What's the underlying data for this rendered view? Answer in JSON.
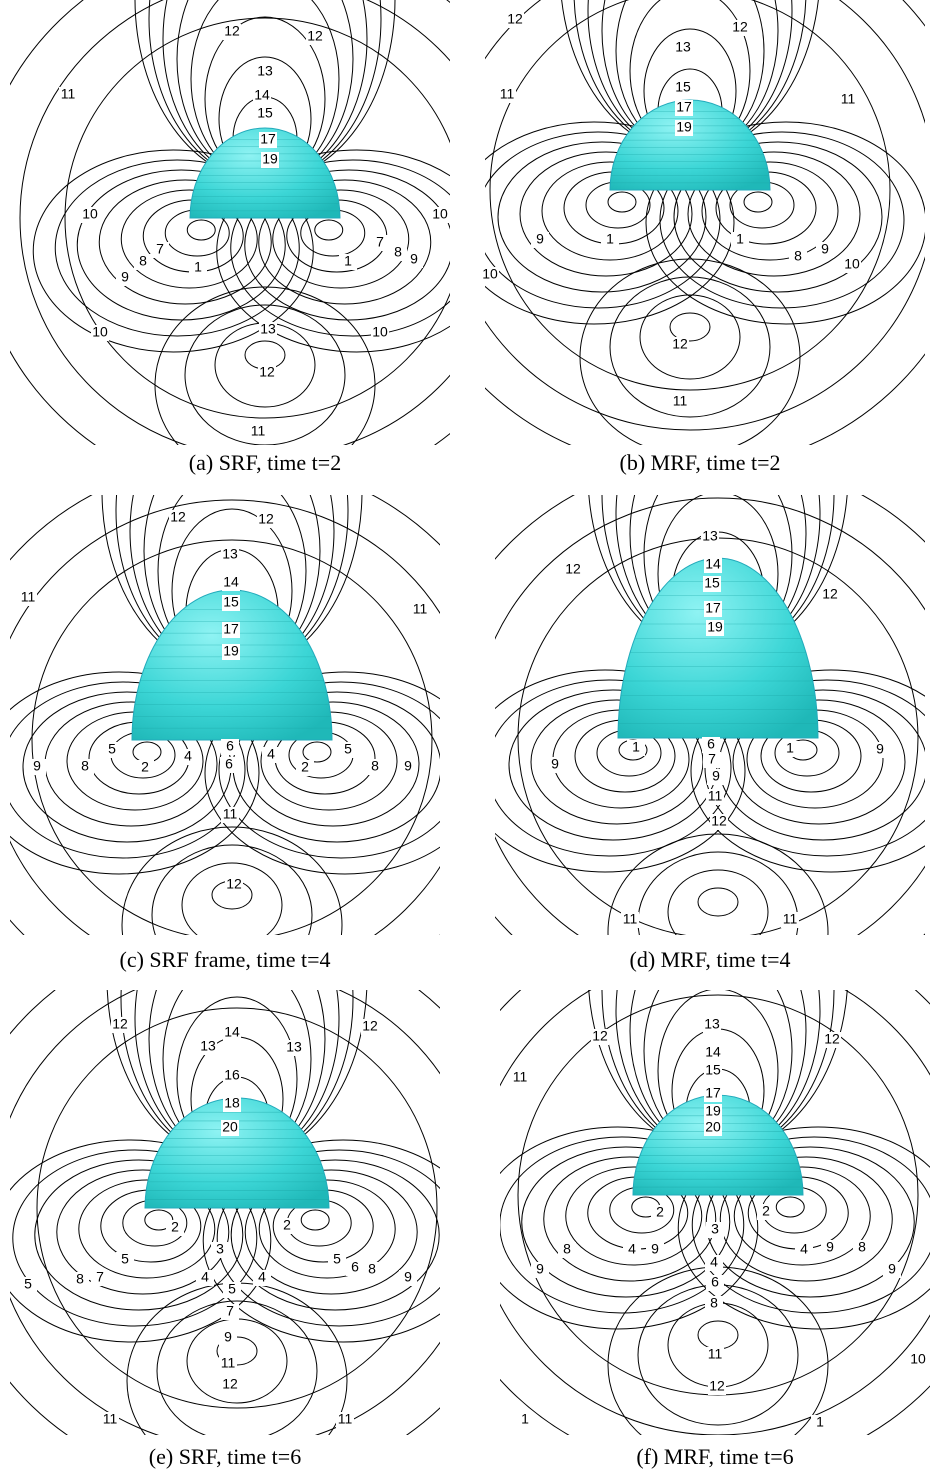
{
  "panels": [
    {
      "caption": "(a) SRF, time t=2",
      "contour_labels": [
        "12",
        "12",
        "11",
        "13",
        "14",
        "15",
        "17",
        "19",
        "10",
        "10",
        "9",
        "8",
        "7",
        "1",
        "7",
        "8",
        "9",
        "1",
        "10",
        "10",
        "13",
        "12",
        "11"
      ]
    },
    {
      "caption": "(b) MRF, time t=2",
      "contour_labels": [
        "12",
        "12",
        "13",
        "11",
        "11",
        "15",
        "17",
        "19",
        "1",
        "1",
        "8",
        "9",
        "9",
        "10",
        "10",
        "12",
        "11"
      ]
    },
    {
      "caption": "(c) SRF frame, time t=4",
      "contour_labels": [
        "12",
        "12",
        "13",
        "14",
        "15",
        "17",
        "19",
        "11",
        "11",
        "6",
        "6",
        "5",
        "2",
        "4",
        "4",
        "2",
        "5",
        "8",
        "9",
        "8",
        "9",
        "11",
        "12"
      ]
    },
    {
      "caption": "(d) MRF, time t=4",
      "contour_labels": [
        "13",
        "14",
        "15",
        "17",
        "19",
        "12",
        "12",
        "1",
        "6",
        "7",
        "1",
        "9",
        "11",
        "9",
        "9",
        "12",
        "11",
        "11"
      ]
    },
    {
      "caption": "(e) SRF, time t=6",
      "contour_labels": [
        "12",
        "13",
        "14",
        "13",
        "12",
        "16",
        "18",
        "20",
        "2",
        "2",
        "3",
        "4",
        "4",
        "5",
        "5",
        "7",
        "8",
        "5",
        "5",
        "6",
        "8",
        "9",
        "7",
        "9",
        "11",
        "12",
        "11",
        "11"
      ]
    },
    {
      "caption": "(f) MRF, time t=6",
      "contour_labels": [
        "13",
        "12",
        "12",
        "11",
        "14",
        "15",
        "17",
        "19",
        "20",
        "2",
        "2",
        "3",
        "4",
        "4",
        "4",
        "6",
        "8",
        "9",
        "9",
        "8",
        "9",
        "8",
        "9",
        "11",
        "10",
        "12",
        "1",
        "1"
      ]
    }
  ]
}
